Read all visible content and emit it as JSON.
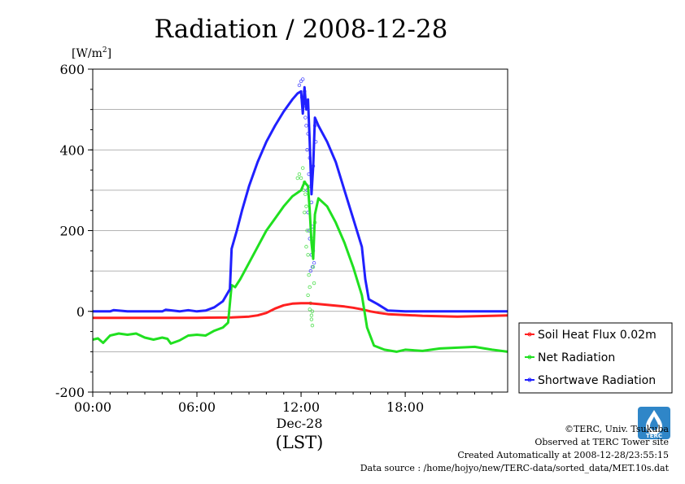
{
  "chart_data": {
    "type": "line",
    "title": "Radiation / 2008-12-28",
    "yunit": "[W/m",
    "yunit_sup": "2",
    "yunit_close": "]",
    "ylim": [
      -200,
      600
    ],
    "yticks": [
      "600",
      "400",
      "200",
      "0",
      "-200"
    ],
    "xlim": [
      0,
      23.9
    ],
    "xticks": [
      "00:00",
      "06:00",
      "12:00",
      "18:00"
    ],
    "xdate": "Dec-28",
    "xlabel": "(LST)",
    "grid": true,
    "legend_position": "right",
    "series": [
      {
        "name": "Soil Heat Flux 0.02m",
        "color": "#ff2020",
        "points": [
          [
            0,
            -16
          ],
          [
            2,
            -16
          ],
          [
            4,
            -16
          ],
          [
            6,
            -16
          ],
          [
            8,
            -15
          ],
          [
            9,
            -13
          ],
          [
            9.5,
            -10
          ],
          [
            10,
            -4
          ],
          [
            10.5,
            7
          ],
          [
            11,
            15
          ],
          [
            11.5,
            19
          ],
          [
            12,
            20
          ],
          [
            12.5,
            20
          ],
          [
            13,
            18
          ],
          [
            13.5,
            16
          ],
          [
            14,
            14
          ],
          [
            14.5,
            12
          ],
          [
            15,
            9
          ],
          [
            15.5,
            5
          ],
          [
            16,
            0
          ],
          [
            16.5,
            -4
          ],
          [
            17,
            -7
          ],
          [
            18,
            -9
          ],
          [
            19,
            -11
          ],
          [
            20,
            -12
          ],
          [
            21,
            -13
          ],
          [
            22,
            -12
          ],
          [
            23,
            -11
          ],
          [
            23.9,
            -10
          ]
        ]
      },
      {
        "name": "Net Radiation",
        "color": "#20e020",
        "points": [
          [
            0,
            -70
          ],
          [
            0.3,
            -67
          ],
          [
            0.6,
            -78
          ],
          [
            1,
            -60
          ],
          [
            1.5,
            -55
          ],
          [
            2,
            -58
          ],
          [
            2.5,
            -55
          ],
          [
            3,
            -65
          ],
          [
            3.5,
            -70
          ],
          [
            4,
            -65
          ],
          [
            4.3,
            -68
          ],
          [
            4.5,
            -80
          ],
          [
            5,
            -72
          ],
          [
            5.5,
            -60
          ],
          [
            6,
            -58
          ],
          [
            6.5,
            -60
          ],
          [
            7,
            -48
          ],
          [
            7.5,
            -40
          ],
          [
            7.8,
            -28
          ],
          [
            8.0,
            65
          ],
          [
            8.2,
            60
          ],
          [
            8.5,
            80
          ],
          [
            9,
            120
          ],
          [
            9.5,
            160
          ],
          [
            10,
            200
          ],
          [
            10.5,
            230
          ],
          [
            11,
            260
          ],
          [
            11.5,
            285
          ],
          [
            12,
            300
          ],
          [
            12.2,
            320
          ],
          [
            12.4,
            310
          ],
          [
            12.5,
            250
          ],
          [
            12.6,
            170
          ],
          [
            12.7,
            130
          ],
          [
            12.8,
            240
          ],
          [
            13,
            280
          ],
          [
            13.5,
            260
          ],
          [
            14,
            220
          ],
          [
            14.5,
            170
          ],
          [
            15,
            110
          ],
          [
            15.5,
            40
          ],
          [
            15.8,
            -40
          ],
          [
            16.2,
            -85
          ],
          [
            16.8,
            -95
          ],
          [
            17.5,
            -100
          ],
          [
            18,
            -95
          ],
          [
            19,
            -98
          ],
          [
            20,
            -92
          ],
          [
            21,
            -90
          ],
          [
            22,
            -88
          ],
          [
            23,
            -95
          ],
          [
            23.9,
            -100
          ]
        ]
      },
      {
        "name": "Shortwave Radiation",
        "color": "#2020ff",
        "points": [
          [
            0,
            0
          ],
          [
            1,
            0
          ],
          [
            1.2,
            3
          ],
          [
            2,
            0
          ],
          [
            3,
            0
          ],
          [
            4,
            0
          ],
          [
            4.2,
            4
          ],
          [
            5,
            0
          ],
          [
            5.5,
            3
          ],
          [
            6,
            0
          ],
          [
            6.5,
            2
          ],
          [
            7,
            10
          ],
          [
            7.5,
            25
          ],
          [
            7.9,
            55
          ],
          [
            8.0,
            155
          ],
          [
            8.3,
            200
          ],
          [
            8.6,
            250
          ],
          [
            9,
            310
          ],
          [
            9.5,
            370
          ],
          [
            10,
            420
          ],
          [
            10.5,
            460
          ],
          [
            11,
            495
          ],
          [
            11.5,
            525
          ],
          [
            11.8,
            540
          ],
          [
            12,
            545
          ],
          [
            12.1,
            490
          ],
          [
            12.2,
            555
          ],
          [
            12.3,
            500
          ],
          [
            12.4,
            525
          ],
          [
            12.5,
            420
          ],
          [
            12.6,
            290
          ],
          [
            12.7,
            360
          ],
          [
            12.8,
            480
          ],
          [
            13,
            460
          ],
          [
            13.5,
            420
          ],
          [
            14,
            370
          ],
          [
            14.5,
            300
          ],
          [
            15,
            230
          ],
          [
            15.5,
            160
          ],
          [
            15.7,
            80
          ],
          [
            15.9,
            30
          ],
          [
            16.4,
            18
          ],
          [
            17,
            2
          ],
          [
            18,
            0
          ],
          [
            20,
            0
          ],
          [
            22,
            0
          ],
          [
            23.9,
            0
          ]
        ]
      }
    ],
    "scatter": [
      {
        "name": "Shortwave Radiation",
        "color": "#5050ff",
        "points": [
          [
            11.9,
            560
          ],
          [
            12.0,
            570
          ],
          [
            12.05,
            530
          ],
          [
            12.1,
            575
          ],
          [
            12.15,
            515
          ],
          [
            12.2,
            545
          ],
          [
            12.25,
            480
          ],
          [
            12.3,
            520
          ],
          [
            12.35,
            400
          ],
          [
            12.4,
            440
          ],
          [
            12.45,
            340
          ],
          [
            12.5,
            380
          ],
          [
            12.55,
            310
          ],
          [
            12.6,
            270
          ],
          [
            12.65,
            210
          ],
          [
            12.7,
            150
          ],
          [
            12.75,
            120
          ],
          [
            12.8,
            460
          ],
          [
            12.55,
            100
          ],
          [
            12.45,
            200
          ],
          [
            12.4,
            245
          ],
          [
            12.35,
            300
          ],
          [
            12.5,
            180
          ],
          [
            12.6,
            140
          ],
          [
            12.65,
            110
          ],
          [
            12.7,
            360
          ],
          [
            12.3,
            460
          ],
          [
            12.2,
            510
          ],
          [
            12.85,
            420
          ]
        ]
      },
      {
        "name": "Net Radiation",
        "color": "#50e050",
        "points": [
          [
            11.8,
            330
          ],
          [
            11.9,
            340
          ],
          [
            12.0,
            330
          ],
          [
            12.1,
            355
          ],
          [
            12.2,
            320
          ],
          [
            12.25,
            290
          ],
          [
            12.3,
            260
          ],
          [
            12.35,
            200
          ],
          [
            12.4,
            140
          ],
          [
            12.45,
            90
          ],
          [
            12.5,
            60
          ],
          [
            12.55,
            20
          ],
          [
            12.6,
            -20
          ],
          [
            12.65,
            -35
          ],
          [
            12.7,
            110
          ],
          [
            12.75,
            70
          ],
          [
            12.8,
            220
          ],
          [
            12.3,
            160
          ],
          [
            12.4,
            40
          ],
          [
            12.5,
            5
          ],
          [
            12.6,
            -10
          ],
          [
            12.2,
            245
          ],
          [
            12.15,
            300
          ],
          [
            12.7,
            180
          ],
          [
            12.65,
            0
          ]
        ]
      }
    ]
  },
  "credits": {
    "copyright": "©TERC, Univ. Tsukuba",
    "observed": "Observed at TERC Tower site",
    "created": "Created Automatically at 2008-12-28/23:55:15",
    "source": "Data source : /home/hojyo/new/TERC-data/sorted_data/MET.10s.dat",
    "logo_text": "TERC"
  }
}
